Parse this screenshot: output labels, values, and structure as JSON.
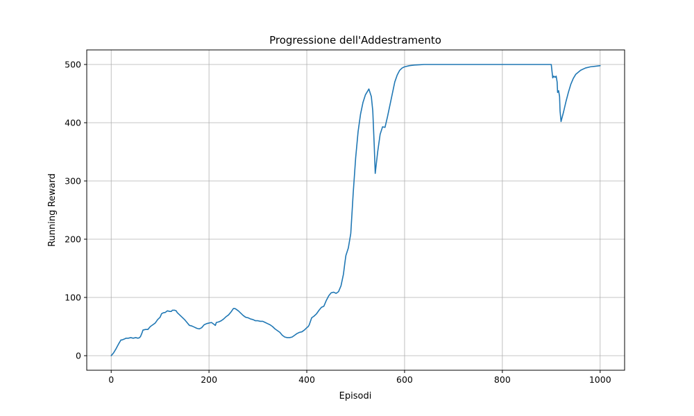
{
  "chart_data": {
    "type": "line",
    "title": "Progressione dell'Addestramento",
    "xlabel": "Episodi",
    "ylabel": "Running Reward",
    "xlim": [
      -50,
      1050
    ],
    "ylim": [
      -25,
      525
    ],
    "xticks": [
      0,
      200,
      400,
      600,
      800,
      1000
    ],
    "yticks": [
      0,
      100,
      200,
      300,
      400,
      500
    ],
    "grid": true,
    "legend": "none",
    "series": [
      {
        "color": "#1f77b4",
        "x": [
          0,
          5,
          10,
          15,
          20,
          22,
          25,
          28,
          30,
          35,
          40,
          45,
          50,
          55,
          58,
          60,
          63,
          65,
          70,
          75,
          80,
          85,
          90,
          95,
          100,
          103,
          105,
          108,
          110,
          115,
          120,
          123,
          125,
          130,
          133,
          135,
          140,
          145,
          150,
          155,
          160,
          165,
          170,
          175,
          180,
          185,
          190,
          195,
          200,
          205,
          210,
          213,
          215,
          220,
          225,
          230,
          235,
          240,
          245,
          250,
          253,
          255,
          260,
          265,
          270,
          275,
          280,
          285,
          290,
          295,
          300,
          305,
          310,
          315,
          320,
          325,
          330,
          335,
          340,
          345,
          350,
          355,
          360,
          365,
          370,
          375,
          380,
          385,
          390,
          395,
          400,
          403,
          405,
          410,
          415,
          420,
          425,
          430,
          435,
          440,
          445,
          450,
          455,
          460,
          465,
          470,
          475,
          478,
          480,
          485,
          490,
          495,
          500,
          505,
          510,
          515,
          520,
          525,
          527,
          530,
          532,
          535,
          538,
          540,
          545,
          550,
          555,
          560,
          565,
          570,
          575,
          580,
          585,
          590,
          595,
          600,
          610,
          620,
          630,
          640,
          650,
          680,
          720,
          760,
          800,
          850,
          880,
          900,
          903,
          905,
          908,
          910,
          912,
          913,
          915,
          917,
          918,
          920,
          925,
          930,
          935,
          940,
          945,
          950,
          960,
          970,
          980,
          990,
          1000
        ],
        "y": [
          0,
          5,
          12,
          20,
          27,
          27,
          28,
          29,
          30,
          30,
          31,
          30,
          31,
          30,
          31,
          33,
          39,
          44,
          45,
          45,
          50,
          53,
          56,
          62,
          66,
          72,
          73,
          74,
          74,
          77,
          76,
          76,
          78,
          78,
          77,
          74,
          70,
          66,
          62,
          57,
          52,
          51,
          49,
          47,
          46,
          48,
          53,
          55,
          56,
          57,
          54,
          52,
          57,
          58,
          60,
          63,
          67,
          70,
          75,
          81,
          81,
          80,
          77,
          73,
          69,
          66,
          65,
          63,
          62,
          60,
          60,
          59,
          59,
          57,
          55,
          53,
          50,
          46,
          43,
          40,
          35,
          32,
          31,
          31,
          32,
          35,
          38,
          40,
          41,
          44,
          48,
          50,
          53,
          65,
          68,
          72,
          78,
          83,
          85,
          95,
          103,
          108,
          109,
          107,
          110,
          120,
          140,
          160,
          172,
          185,
          210,
          280,
          340,
          385,
          415,
          435,
          448,
          455,
          458,
          450,
          445,
          420,
          360,
          313,
          350,
          380,
          393,
          392,
          410,
          430,
          450,
          470,
          482,
          490,
          494,
          496,
          498,
          499,
          499.5,
          500,
          500,
          500,
          500,
          500,
          500,
          500,
          500,
          500,
          477,
          480,
          478,
          480,
          470,
          452,
          455,
          445,
          420,
          402,
          418,
          436,
          452,
          466,
          476,
          483,
          490,
          494,
          496,
          497,
          498
        ]
      }
    ]
  }
}
